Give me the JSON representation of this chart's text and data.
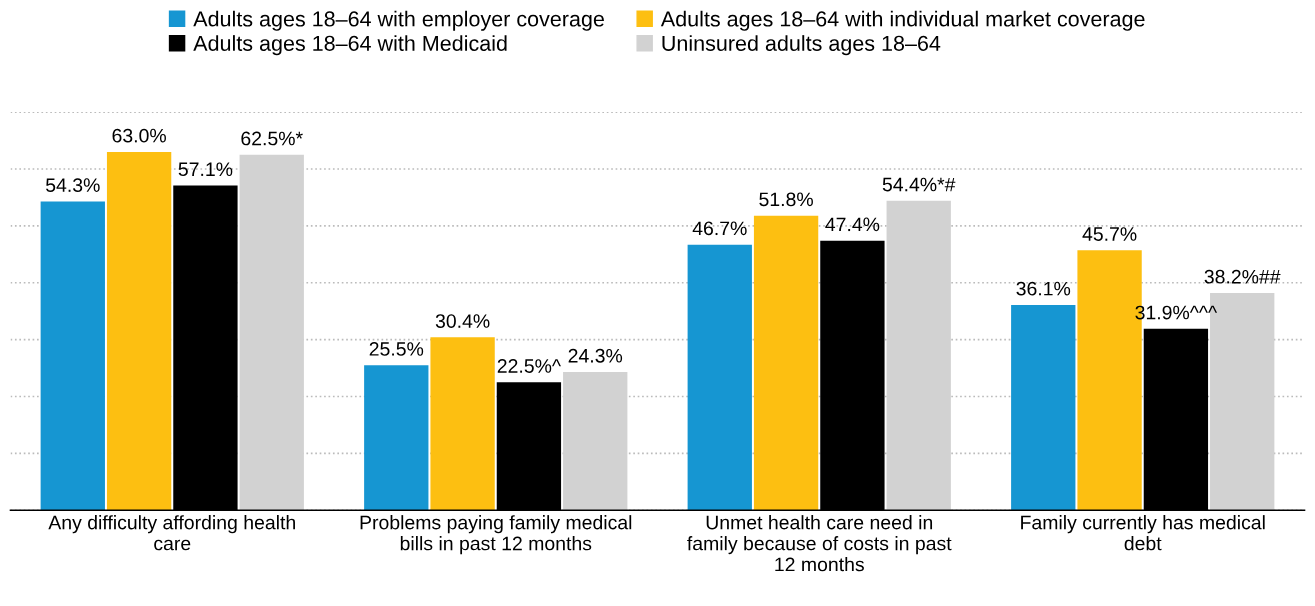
{
  "chart_data": {
    "type": "bar",
    "categories": [
      "Any difficulty affording health\ncare",
      "Problems paying family medical\nbills in past 12 months",
      "Unmet health care need in\nfamily because of costs in past\n12 months",
      "Family currently has medical\ndebt"
    ],
    "series": [
      {
        "name": "Adults ages 18–64 with employer coverage",
        "color": "#1696d2",
        "values": [
          54.3,
          25.5,
          46.7,
          36.1
        ],
        "value_labels": [
          "54.3%",
          "25.5%",
          "46.7%",
          "36.1%"
        ]
      },
      {
        "name": "Adults ages 18–64 with individual market coverage",
        "color": "#fdbf11",
        "values": [
          63.0,
          30.4,
          51.8,
          45.7
        ],
        "value_labels": [
          "63.0%",
          "30.4%",
          "51.8%",
          "45.7%"
        ]
      },
      {
        "name": "Adults ages 18–64 with Medicaid",
        "color": "#000000",
        "values": [
          57.1,
          22.5,
          47.4,
          31.9
        ],
        "value_labels": [
          "57.1%",
          "22.5%^",
          "47.4%",
          "31.9%^^^"
        ]
      },
      {
        "name": "Uninsured adults ages 18–64",
        "color": "#d2d2d2",
        "values": [
          62.5,
          24.3,
          54.4,
          38.2
        ],
        "value_labels": [
          "62.5%*",
          "24.3%",
          "54.4%*#",
          "38.2%##"
        ]
      }
    ],
    "ylim": [
      0,
      70
    ],
    "yticks": [
      {
        "value": 0,
        "label": null
      },
      {
        "value": 10,
        "label": null
      },
      {
        "value": 20,
        "label": null
      },
      {
        "value": 30,
        "label": null
      },
      {
        "value": 40,
        "label": null
      },
      {
        "value": 50,
        "label": null
      },
      {
        "value": 60,
        "label": null
      },
      {
        "value": 70,
        "label": null
      }
    ],
    "tick_labels": "x",
    "grid": "y",
    "legend": "top"
  }
}
